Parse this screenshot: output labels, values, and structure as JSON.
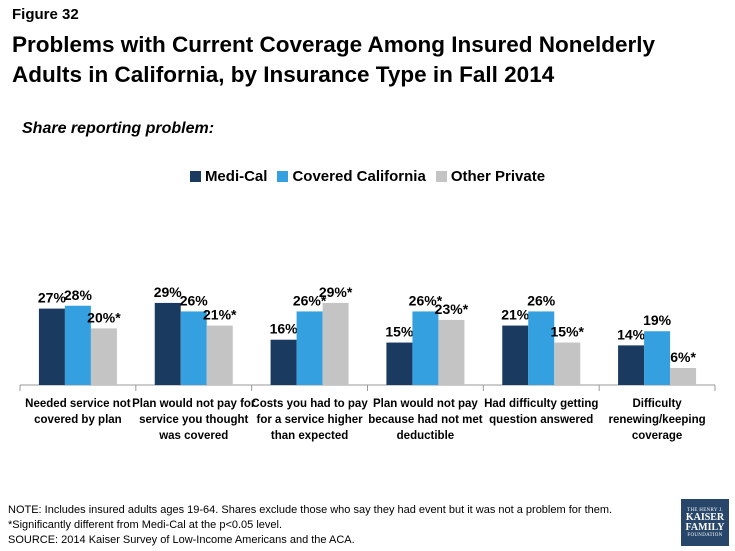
{
  "figure_label": "Figure 32",
  "title": "Problems with Current Coverage Among Insured Nonelderly Adults in California, by Insurance Type in Fall 2014",
  "subtitle": "Share reporting problem:",
  "colors": {
    "medi_cal": "#1b3a5f",
    "covered_california": "#35a0e0",
    "other_private": "#c4c4c4",
    "axis": "#999999"
  },
  "chart_data": {
    "type": "bar",
    "categories": [
      [
        "Needed service not",
        "covered by plan"
      ],
      [
        "Plan would not pay for",
        "service you thought",
        "was covered"
      ],
      [
        "Costs you had to pay",
        "for a service higher",
        "than expected"
      ],
      [
        "Plan would not pay",
        "because had not met",
        "deductible"
      ],
      [
        "Had difficulty getting",
        "question answered"
      ],
      [
        "Difficulty",
        "renewing/keeping",
        "coverage"
      ]
    ],
    "series": [
      {
        "name": "Medi-Cal",
        "values": [
          27,
          29,
          16,
          15,
          21,
          14
        ],
        "labels": [
          "27%",
          "29%",
          "16%",
          "15%",
          "21%",
          "14%"
        ]
      },
      {
        "name": "Covered California",
        "values": [
          28,
          26,
          26,
          26,
          26,
          19
        ],
        "labels": [
          "28%",
          "26%",
          "26%*",
          "26%*",
          "26%",
          "19%"
        ]
      },
      {
        "name": "Other Private",
        "values": [
          20,
          21,
          29,
          23,
          15,
          6
        ],
        "labels": [
          "20%*",
          "21%*",
          "29%*",
          "23%*",
          "15%*",
          "6%*"
        ]
      }
    ],
    "ylim": [
      0,
      30
    ]
  },
  "notes": [
    "NOTE: Includes insured adults ages 19-64. Shares exclude those who say they had event but it was not a problem for them.",
    "*Significantly different from Medi-Cal at the p<0.05 level.",
    "SOURCE: 2014 Kaiser Survey of Low-Income Americans and the ACA."
  ],
  "logo": {
    "line1": "THE HENRY J.",
    "line2": "KAISER",
    "line3": "FAMILY",
    "line4": "FOUNDATION"
  }
}
